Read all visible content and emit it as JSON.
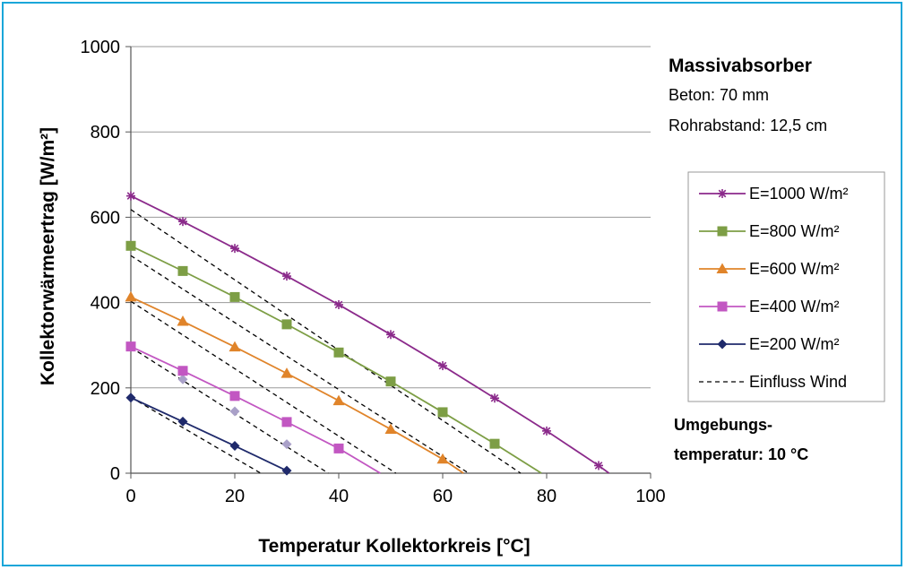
{
  "chart_data": {
    "type": "line",
    "xlabel": "Temperatur Kollektorkreis [°C]",
    "ylabel": "Kollektorwärmeertrag [W/m²]",
    "xlim": [
      0,
      100
    ],
    "ylim": [
      0,
      1000
    ],
    "xticks": [
      "0",
      "20",
      "40",
      "60",
      "80",
      "100"
    ],
    "yticks": [
      "0",
      "200",
      "400",
      "600",
      "800",
      "1000"
    ],
    "grid": "horizontal",
    "legend_placement": "right",
    "annotations": {
      "title": "Massivabsorber",
      "line1": "Beton: 70 mm",
      "line2": "Rohrabstand: 12,5 cm",
      "note1": "Umgebungs-",
      "note2": "temperatur: 10 °C"
    },
    "series": [
      {
        "name": "E=1000 W/m²",
        "color": "#8b2a8b",
        "marker": "star",
        "x": [
          0,
          10,
          20,
          30,
          40,
          50,
          60,
          70,
          80,
          90,
          92
        ],
        "y": [
          650,
          590,
          527,
          462,
          395,
          325,
          252,
          176,
          99,
          18,
          0
        ]
      },
      {
        "name": "E=800 W/m²",
        "color": "#7d9e45",
        "marker": "square",
        "x": [
          0,
          10,
          20,
          30,
          40,
          50,
          60,
          70,
          79
        ],
        "y": [
          533,
          474,
          413,
          349,
          283,
          215,
          143,
          69,
          0
        ]
      },
      {
        "name": "E=600 W/m²",
        "color": "#e0842a",
        "marker": "triangle",
        "x": [
          0,
          10,
          20,
          30,
          40,
          50,
          60,
          64
        ],
        "y": [
          413,
          356,
          296,
          234,
          170,
          103,
          33,
          0
        ]
      },
      {
        "name": "E=400 W/m²",
        "color": "#c257c2",
        "marker": "square",
        "x": [
          0,
          10,
          20,
          30,
          40,
          48
        ],
        "y": [
          297,
          240,
          181,
          120,
          58,
          0
        ]
      },
      {
        "name": "E=200 W/m²",
        "color": "#1f2a6b",
        "marker": "diamond",
        "x": [
          0,
          10,
          20,
          30
        ],
        "y": [
          177,
          121,
          64,
          6
        ]
      },
      {
        "name": "Einfluss Wind",
        "color": "#000000",
        "marker": "none",
        "dashed": true,
        "lines": [
          {
            "x": [
              0,
              75
            ],
            "y": [
              618,
              0
            ]
          },
          {
            "x": [
              0,
              65
            ],
            "y": [
              510,
              0
            ]
          },
          {
            "x": [
              0,
              51
            ],
            "y": [
              403,
              0
            ]
          },
          {
            "x": [
              0,
              38
            ],
            "y": [
              295,
              0
            ]
          },
          {
            "x": [
              0,
              25
            ],
            "y": [
              178,
              0
            ]
          }
        ],
        "points": {
          "x": [
            10,
            20,
            30
          ],
          "y": [
            220,
            145,
            68
          ],
          "color": "#a9a0c8"
        }
      }
    ]
  }
}
